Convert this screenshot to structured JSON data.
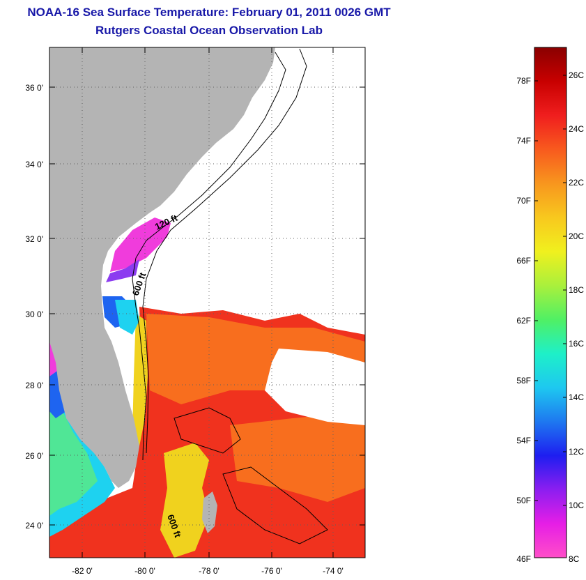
{
  "title": {
    "line1": "NOAA-16 Sea Surface Temperature:  February 01, 2011 0026 GMT",
    "line2": "Rutgers Coastal Ocean Observation Lab"
  },
  "map": {
    "lat_ticks": [
      "36 0'",
      "34 0'",
      "32 0'",
      "30 0'",
      "28 0'",
      "26 0'",
      "24 0'"
    ],
    "lon_ticks": [
      "-82 0'",
      "-80 0'",
      "-78 0'",
      "-76 0'",
      "-74 0'"
    ],
    "contour_labels": [
      "120 ft",
      "600 ft",
      "600 ft"
    ],
    "colors": {
      "land": "#b4b4b4",
      "cloud": "#ffffff",
      "warm": "#f0321e",
      "orange": "#f86e1e",
      "yellow": "#f0d21e",
      "green": "#50e696",
      "cyan": "#1ed2f0",
      "blue": "#1e64f0",
      "violet": "#8c3cf0",
      "magenta": "#f03cdc"
    }
  },
  "colorbar": {
    "fahrenheit_labels": [
      "78F",
      "74F",
      "70F",
      "66F",
      "62F",
      "58F",
      "54F",
      "50F",
      "46F"
    ],
    "celsius_labels": [
      "26C",
      "24C",
      "22C",
      "20C",
      "18C",
      "16C",
      "14C",
      "12C",
      "10C",
      "8C"
    ],
    "gradient_colors": [
      "#8a0000",
      "#c80000",
      "#f01e1e",
      "#f85a1e",
      "#f8961e",
      "#f8c81e",
      "#f0f01e",
      "#aaf03c",
      "#50f064",
      "#1ef0c8",
      "#1ec8f0",
      "#1e78f0",
      "#1e1ef0",
      "#8c1ef0",
      "#e61ee6",
      "#ff4ec8"
    ]
  }
}
